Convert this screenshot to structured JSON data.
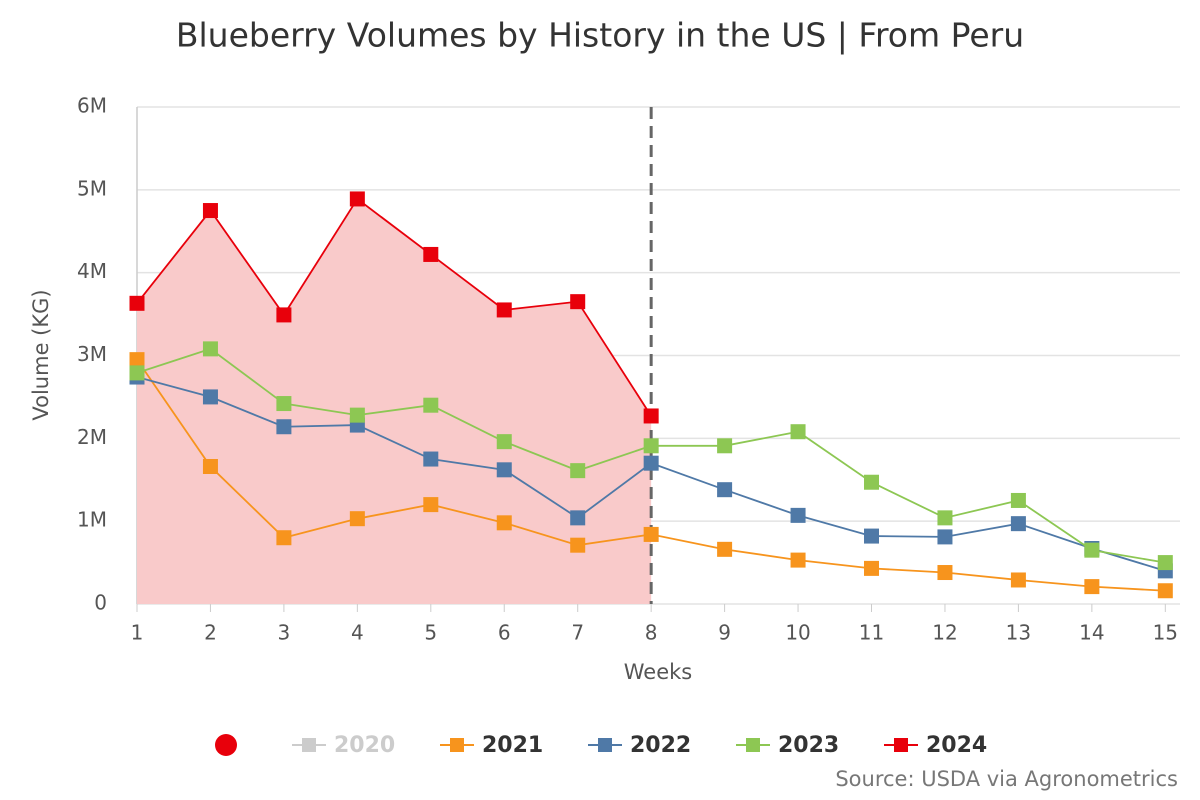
{
  "chart_data": {
    "type": "line",
    "title": "Blueberry Volumes by History in the US | From Peru",
    "x_label": "Weeks",
    "y_label": "Volume (KG)",
    "source": "Source: USDA via Agronometrics",
    "x": [
      1,
      2,
      3,
      4,
      5,
      6,
      7,
      8,
      9,
      10,
      11,
      12,
      13,
      14,
      15
    ],
    "xlim": [
      1,
      15.2
    ],
    "xticks": [
      1,
      2,
      3,
      4,
      5,
      6,
      7,
      8,
      9,
      10,
      11,
      12,
      13,
      14,
      15
    ],
    "ylim": [
      0,
      6000000
    ],
    "yticks": [
      0,
      {
        "value": 1000000,
        "label": "1M"
      },
      {
        "value": 2000000,
        "label": "2M"
      },
      {
        "value": 3000000,
        "label": "3M"
      },
      {
        "value": 4000000,
        "label": "4M"
      },
      {
        "value": 5000000,
        "label": "5M"
      },
      {
        "value": 6000000,
        "label": "6M"
      }
    ],
    "grid": true,
    "marker_line": {
      "x": 8
    },
    "series": [
      {
        "name": "2020",
        "color": "#cccccc",
        "visible": false,
        "values": [
          null,
          null,
          null,
          null,
          null,
          null,
          null,
          null,
          null,
          null,
          null,
          null,
          null,
          null,
          null
        ]
      },
      {
        "name": "2021",
        "color": "#f7941d",
        "values": [
          2950000,
          1660000,
          800000,
          1030000,
          1200000,
          980000,
          710000,
          840000,
          660000,
          530000,
          430000,
          380000,
          290000,
          210000,
          160000
        ]
      },
      {
        "name": "2022",
        "color": "#4f79a7",
        "values": [
          2740000,
          2500000,
          2140000,
          2160000,
          1750000,
          1620000,
          1040000,
          1700000,
          1380000,
          1070000,
          820000,
          810000,
          970000,
          670000,
          400000
        ]
      },
      {
        "name": "2023",
        "color": "#8dc753",
        "values": [
          2790000,
          3080000,
          2420000,
          2280000,
          2400000,
          1960000,
          1610000,
          1910000,
          1910000,
          2080000,
          1470000,
          1040000,
          1250000,
          650000,
          500000
        ]
      },
      {
        "name": "2024",
        "color": "#e8000b",
        "area_color": "#f9caca",
        "values": [
          3630000,
          4750000,
          3490000,
          4890000,
          4220000,
          3550000,
          3650000,
          2270000,
          null,
          null,
          null,
          null,
          null,
          null,
          null
        ]
      }
    ]
  }
}
